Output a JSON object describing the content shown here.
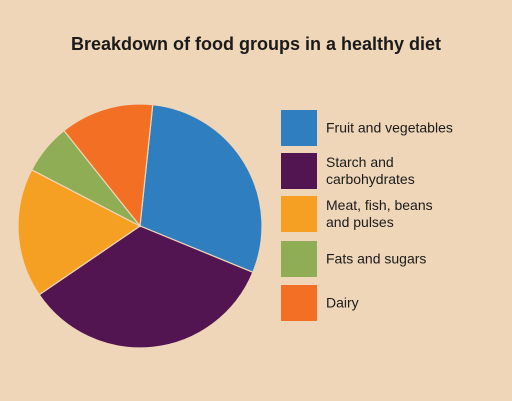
{
  "chart_data": {
    "type": "pie",
    "title": "Breakdown of food groups in a healthy diet",
    "categories": [
      "Fruit and vegetables",
      "Starch and\ncarbohydrates",
      "Meat, fish, beans\nand pulses",
      "Fats and sugars",
      "Dairy"
    ],
    "values": [
      31,
      36,
      18,
      7,
      13
    ],
    "colors": [
      "#2f7ec0",
      "#521552",
      "#f6a023",
      "#8fad54",
      "#f36f23"
    ],
    "start_angle_deg": -84,
    "legend_position": "right"
  }
}
